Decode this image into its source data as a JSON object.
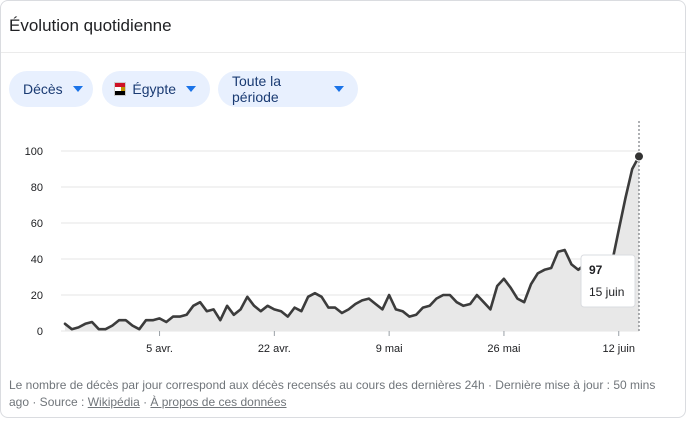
{
  "header": {
    "title": "Évolution quotidienne"
  },
  "filters": {
    "metric": "Décès",
    "country": "Égypte",
    "period": "Toute la période"
  },
  "chart_data": {
    "type": "area",
    "x": [
      "2020-03-22",
      "2020-03-23",
      "2020-03-24",
      "2020-03-25",
      "2020-03-26",
      "2020-03-27",
      "2020-03-28",
      "2020-03-29",
      "2020-03-30",
      "2020-03-31",
      "2020-04-01",
      "2020-04-02",
      "2020-04-03",
      "2020-04-04",
      "2020-04-05",
      "2020-04-06",
      "2020-04-07",
      "2020-04-08",
      "2020-04-09",
      "2020-04-10",
      "2020-04-11",
      "2020-04-12",
      "2020-04-13",
      "2020-04-14",
      "2020-04-15",
      "2020-04-16",
      "2020-04-17",
      "2020-04-18",
      "2020-04-19",
      "2020-04-20",
      "2020-04-21",
      "2020-04-22",
      "2020-04-23",
      "2020-04-24",
      "2020-04-25",
      "2020-04-26",
      "2020-04-27",
      "2020-04-28",
      "2020-04-29",
      "2020-04-30",
      "2020-05-01",
      "2020-05-02",
      "2020-05-03",
      "2020-05-04",
      "2020-05-05",
      "2020-05-06",
      "2020-05-07",
      "2020-05-08",
      "2020-05-09",
      "2020-05-10",
      "2020-05-11",
      "2020-05-12",
      "2020-05-13",
      "2020-05-14",
      "2020-05-15",
      "2020-05-16",
      "2020-05-17",
      "2020-05-18",
      "2020-05-19",
      "2020-05-20",
      "2020-05-21",
      "2020-05-22",
      "2020-05-23",
      "2020-05-24",
      "2020-05-25",
      "2020-05-26",
      "2020-05-27",
      "2020-05-28",
      "2020-05-29",
      "2020-05-30",
      "2020-05-31",
      "2020-06-01",
      "2020-06-02",
      "2020-06-03",
      "2020-06-04",
      "2020-06-05",
      "2020-06-06",
      "2020-06-07",
      "2020-06-08",
      "2020-06-09",
      "2020-06-10",
      "2020-06-11",
      "2020-06-12",
      "2020-06-13",
      "2020-06-14",
      "2020-06-15"
    ],
    "values": [
      4,
      1,
      2,
      4,
      5,
      1,
      1,
      3,
      6,
      6,
      3,
      1,
      6,
      6,
      7,
      5,
      8,
      8,
      9,
      14,
      16,
      11,
      12,
      6,
      14,
      9,
      12,
      19,
      14,
      11,
      14,
      12,
      11,
      8,
      13,
      11,
      19,
      21,
      19,
      13,
      13,
      10,
      12,
      15,
      17,
      18,
      15,
      12,
      20,
      12,
      11,
      8,
      9,
      13,
      14,
      18,
      20,
      20,
      16,
      14,
      15,
      20,
      16,
      12,
      25,
      29,
      24,
      18,
      16,
      26,
      32,
      34,
      35,
      44,
      45,
      37,
      34,
      37,
      39,
      34,
      30,
      38,
      56,
      74,
      90,
      97
    ],
    "xticks": [
      {
        "x": "2020-04-05",
        "label": "5 avr."
      },
      {
        "x": "2020-04-22",
        "label": "22 avr."
      },
      {
        "x": "2020-05-09",
        "label": "9 mai"
      },
      {
        "x": "2020-05-26",
        "label": "26 mai"
      },
      {
        "x": "2020-06-12",
        "label": "12 juin"
      }
    ],
    "yticks": [
      0,
      20,
      40,
      60,
      80,
      100
    ],
    "ylim": [
      0,
      100
    ],
    "grid": "horizontal",
    "highlight": {
      "value": "97",
      "date_label": "15 juin"
    },
    "colors": {
      "line": "#3c3c3c",
      "fill": "#e8e8e8",
      "grid": "#e6e6e6"
    }
  },
  "footer": {
    "text": "Le nombre de décès par jour correspond aux décès recensés au cours des dernières 24h · Dernière mise à jour : 50 mins ago · Source : ",
    "source_link": "Wikipédia",
    "sep": " · ",
    "about_link": "À propos de ces données"
  }
}
